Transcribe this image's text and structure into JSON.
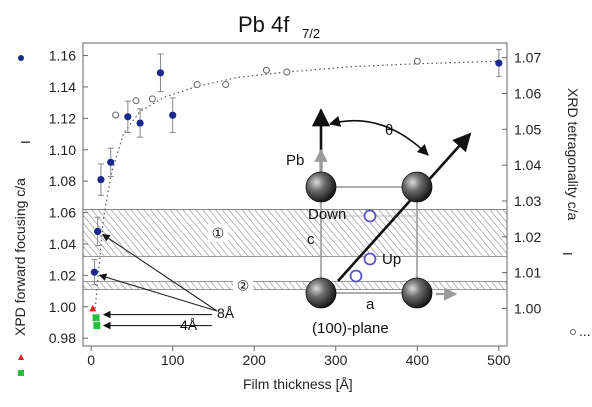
{
  "chart_data": {
    "type": "scatter",
    "title": "Pb 4f",
    "title_subscript": "7/2",
    "xlabel": "Film thickness [Å]",
    "ylabel_left": "XPD forward focusing c/a",
    "ylabel_left_subscript": "I",
    "ylabel_right": "XRD tetragonality c/a",
    "ylabel_right_subscript": "I",
    "xlim": [
      -10,
      510
    ],
    "x_ticks": [
      0,
      100,
      200,
      300,
      400,
      500
    ],
    "y_left_lim": [
      0.975,
      1.168
    ],
    "y_left_ticks": [
      "0.98",
      "1.00",
      "1.02",
      "1.04",
      "1.06",
      "1.08",
      "1.10",
      "1.12",
      "1.14",
      "1.16"
    ],
    "y_right_lim": [
      0.9895,
      1.0741
    ],
    "y_right_ticks": [
      "1.00",
      "1.01",
      "1.02",
      "1.03",
      "1.04",
      "1.05",
      "1.06",
      "1.07"
    ],
    "grid": false,
    "series": [
      {
        "axis": "left",
        "marker": "filled-circle",
        "color": "#1a2a8c",
        "points": [
          {
            "x": 4,
            "y": 1.022,
            "err": 0.008
          },
          {
            "x": 8,
            "y": 1.048,
            "err": 0.009
          },
          {
            "x": 12,
            "y": 1.081,
            "err": 0.01
          },
          {
            "x": 24,
            "y": 1.092,
            "err": 0.009
          },
          {
            "x": 45,
            "y": 1.121,
            "err": 0.01
          },
          {
            "x": 60,
            "y": 1.117,
            "err": 0.009
          },
          {
            "x": 85,
            "y": 1.149,
            "err": 0.012
          },
          {
            "x": 100,
            "y": 1.122,
            "err": 0.011
          }
        ]
      },
      {
        "axis": "left",
        "marker": "filled-triangle",
        "color": "#e02020",
        "points": [
          {
            "x": 2,
            "y": 0.999
          }
        ]
      },
      {
        "axis": "left",
        "marker": "filled-square",
        "color": "#27c03a",
        "points": [
          {
            "x": 6,
            "y": 0.993
          },
          {
            "x": 7,
            "y": 0.988
          }
        ]
      },
      {
        "axis": "right",
        "marker": "filled-circle",
        "color": "#1a2a8c",
        "points": [
          {
            "x": 500,
            "y": 1.0685,
            "err": 0.0038
          }
        ]
      },
      {
        "axis": "right",
        "marker": "open-circle",
        "color": "#666666",
        "points": [
          {
            "x": 30,
            "y": 1.054
          },
          {
            "x": 55,
            "y": 1.058
          },
          {
            "x": 75,
            "y": 1.0585
          },
          {
            "x": 130,
            "y": 1.0625
          },
          {
            "x": 165,
            "y": 1.0625
          },
          {
            "x": 215,
            "y": 1.0665
          },
          {
            "x": 240,
            "y": 1.066
          },
          {
            "x": 400,
            "y": 1.069
          }
        ]
      }
    ],
    "fit_curve_axis": "right",
    "fit_curve": [
      [
        5,
        1.0
      ],
      [
        15,
        1.025
      ],
      [
        25,
        1.038
      ],
      [
        40,
        1.049
      ],
      [
        60,
        1.055
      ],
      [
        90,
        1.059
      ],
      [
        130,
        1.062
      ],
      [
        180,
        1.0645
      ],
      [
        240,
        1.066
      ],
      [
        320,
        1.0675
      ],
      [
        400,
        1.0683
      ],
      [
        500,
        1.069
      ]
    ],
    "bands": [
      {
        "label": "①",
        "axis": "left",
        "y_range": [
          1.032,
          1.062
        ]
      },
      {
        "label": "②",
        "axis": "left",
        "y_range": [
          1.011,
          1.016
        ]
      }
    ],
    "annotations": [
      {
        "text": "8Å",
        "arrow_targets": [
          {
            "x": 8,
            "y": 1.048
          },
          {
            "x": 4,
            "y": 1.022
          }
        ]
      },
      {
        "text": "4Å",
        "arrow_targets": [
          {
            "x": 8,
            "y": 0.995
          },
          {
            "x": 8,
            "y": 0.988
          }
        ]
      }
    ]
  },
  "inset": {
    "angle_label": "θ",
    "atom_label": "Pb",
    "edge_label_c": "c",
    "edge_label_a": "a",
    "down_label": "Down",
    "up_label": "Up",
    "plane_label": "(100)-plane"
  },
  "colors": {
    "primary_series": "#1a2a8c",
    "triangle_marker": "#e02020",
    "square_marker": "#27c03a",
    "open_marker": "#666666",
    "fit_line": "#555555",
    "band_hatch": "#8a8a8a",
    "inset_o": "#5a55c8"
  }
}
